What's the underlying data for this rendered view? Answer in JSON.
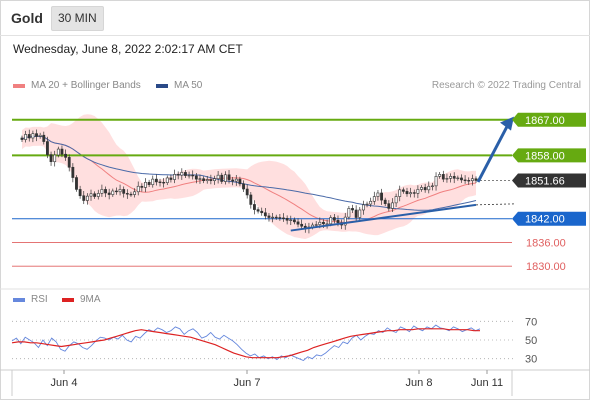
{
  "header": {
    "instrument": "Gold",
    "timeframe": "30 MIN",
    "datetime": "Wednesday, June 8, 2022 2:02:17 AM CET",
    "credit": "Research © 2022 Trading Central"
  },
  "legend": {
    "ma20_label": "MA 20 + Bollinger Bands",
    "ma50_label": "MA 50",
    "rsi_label": "RSI",
    "rsi_ma_label": "9MA"
  },
  "colors": {
    "resistance": "#66aa11",
    "support": "#1a66cc",
    "pivot_lines": "#e06060",
    "last_price_box": "#333333",
    "bollinger_fill": "#ffd9d9",
    "ma20": "#f08080",
    "ma50": "#4a6aa8",
    "rsi": "#6688dd",
    "rsi_ma": "#dd2222",
    "arrow": "#2a5fa8"
  },
  "chart_data": [
    {
      "type": "candlestick",
      "x_ticks": [
        "Jun 4",
        "Jun 7",
        "Jun 8",
        "Jun 11"
      ],
      "ylim": [
        1826,
        1872
      ],
      "levels": [
        {
          "value": "1867.00",
          "kind": "resistance"
        },
        {
          "value": "1858.00",
          "kind": "resistance"
        },
        {
          "value": "1851.66",
          "kind": "last"
        },
        {
          "value": "1842.00",
          "kind": "support"
        },
        {
          "value": "1836.00",
          "kind": "pivot"
        },
        {
          "value": "1830.00",
          "kind": "pivot"
        }
      ],
      "close": [
        1862.0,
        1863.3,
        1862.4,
        1863.5,
        1862.8,
        1863.1,
        1861.5,
        1858.2,
        1856.4,
        1858.1,
        1859.6,
        1858.3,
        1857.5,
        1855.0,
        1852.4,
        1849.4,
        1847.8,
        1846.6,
        1847.7,
        1848.3,
        1847.6,
        1848.4,
        1849.4,
        1848.5,
        1848.1,
        1849.0,
        1848.8,
        1849.4,
        1848.4,
        1848.2,
        1848.1,
        1848.8,
        1850.2,
        1849.9,
        1851.2,
        1850.6,
        1852.0,
        1851.3,
        1851.2,
        1851.1,
        1852.3,
        1851.9,
        1853.2,
        1853.0,
        1853.7,
        1852.9,
        1853.0,
        1852.8,
        1852.0,
        1852.1,
        1851.6,
        1851.9,
        1851.6,
        1852.1,
        1853.0,
        1851.4,
        1853.1,
        1851.8,
        1851.5,
        1852.0,
        1850.8,
        1849.5,
        1848.0,
        1845.6,
        1844.3,
        1843.9,
        1843.5,
        1842.7,
        1842.3,
        1842.4,
        1842.3,
        1842.2,
        1842.1,
        1841.6,
        1841.7,
        1841.2,
        1840.6,
        1840.1,
        1839.5,
        1839.9,
        1840.4,
        1840.5,
        1841.1,
        1840.7,
        1840.7,
        1842.3,
        1841.6,
        1841.0,
        1840.4,
        1842.4,
        1844.6,
        1844.2,
        1842.3,
        1844.2,
        1845.5,
        1845.7,
        1846.4,
        1847.6,
        1848.5,
        1846.7,
        1845.8,
        1844.6,
        1846.0,
        1847.6,
        1849.3,
        1848.9,
        1848.3,
        1848.6,
        1848.4,
        1849.4,
        1849.9,
        1849.3,
        1850.2,
        1850.3,
        1852.7,
        1853.2,
        1852.0,
        1852.2,
        1852.7,
        1852.2,
        1852.3,
        1851.8,
        1851.7,
        1851.6,
        1852.1,
        1851.66
      ],
      "rsi": [
        49,
        52,
        46,
        53,
        50,
        47,
        42,
        50,
        44,
        52,
        48,
        40,
        38,
        44,
        48,
        46,
        42,
        40,
        44,
        49,
        53,
        52,
        50,
        53,
        51,
        55,
        50,
        48,
        54,
        52,
        57,
        61,
        59,
        63,
        61,
        58,
        60,
        64,
        62,
        56,
        60,
        62,
        58,
        52,
        54,
        58,
        53,
        51,
        55,
        52,
        49,
        45,
        40,
        36,
        33,
        35,
        31,
        33,
        30,
        32,
        29,
        33,
        31,
        34,
        32,
        30,
        28,
        32,
        30,
        34,
        33,
        36,
        40,
        44,
        42,
        48,
        46,
        52,
        55,
        50,
        54,
        57,
        56,
        60,
        58,
        63,
        60,
        58,
        64,
        62,
        59,
        65,
        62,
        60,
        64,
        62,
        66,
        63,
        62,
        60,
        64,
        62,
        59,
        61,
        63,
        60,
        62
      ],
      "rsi_ma": [
        47,
        48,
        48,
        47,
        47,
        46,
        45,
        44,
        43,
        44,
        45,
        46,
        47,
        48,
        49,
        50,
        52,
        54,
        56,
        58,
        60,
        61,
        60,
        59,
        58,
        57,
        56,
        55,
        54,
        53,
        51,
        49,
        47,
        45,
        42,
        39,
        36,
        34,
        32,
        31,
        31,
        31,
        31,
        31,
        32,
        33,
        35,
        37,
        39,
        42,
        44,
        46,
        48,
        50,
        52,
        54,
        55,
        56,
        57,
        58,
        59,
        60,
        60,
        61,
        61,
        61,
        62,
        62,
        62,
        62,
        62,
        61,
        61,
        61,
        61,
        60,
        60
      ],
      "rsi_ticks": [
        "70",
        "50",
        "30"
      ]
    }
  ]
}
